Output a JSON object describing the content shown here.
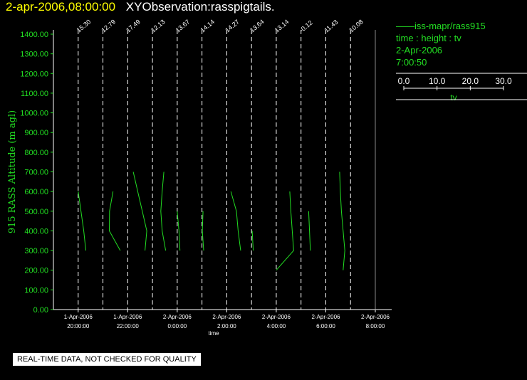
{
  "title": {
    "date": "2-apr-2006,08:00:00",
    "name": "XYObservation:rasspigtails."
  },
  "legend": {
    "series_line": "iss-mapr/rass915",
    "description": "time : height : tv",
    "date": "2-Apr-2006",
    "time": "7:00:50",
    "scale_ticks": [
      "0.0",
      "10.0",
      "20.0",
      "30.0"
    ],
    "scale_label": "tv"
  },
  "banner": "REAL-TIME DATA, NOT CHECKED FOR QUALITY",
  "colors": {
    "series": "#22dd22",
    "axis": "#ffffff",
    "title_date": "#ffff00",
    "grid": "#ffffff"
  },
  "chart_data": {
    "type": "line",
    "ylabel": "915 RASS Altitude (m agl)",
    "xlabel": "time",
    "ylim": [
      0,
      1400
    ],
    "y_ticks": [
      "0.00",
      "100.00",
      "200.00",
      "300.00",
      "400.00",
      "500.00",
      "600.00",
      "700.00",
      "800.00",
      "900.00",
      "1000.00",
      "1100.00",
      "1200.00",
      "1300.00",
      "1400.00"
    ],
    "x_range_hours": [
      19,
      8
    ],
    "x_ticks": [
      {
        "hour": 20,
        "date": "1-Apr-2006",
        "time": "20:00:00"
      },
      {
        "hour": 22,
        "date": "1-Apr-2006",
        "time": "22:00:00"
      },
      {
        "hour": 0,
        "date": "2-Apr-2006",
        "time": "0:00:00"
      },
      {
        "hour": 2,
        "date": "2-Apr-2006",
        "time": "2:00:00"
      },
      {
        "hour": 4,
        "date": "2-Apr-2006",
        "time": "4:00:00"
      },
      {
        "hour": 6,
        "date": "2-Apr-2006",
        "time": "6:00:00"
      },
      {
        "hour": 8,
        "date": "2-Apr-2006",
        "time": "8:00:00"
      }
    ],
    "profiles": [
      {
        "label": "15.30",
        "points": [
          [
            0.0,
            600
          ],
          [
            0.16,
            500
          ],
          [
            0.32,
            400
          ],
          [
            0.44,
            300
          ]
        ]
      },
      {
        "label": "12.79",
        "points": [
          [
            0.58,
            600
          ],
          [
            0.38,
            500
          ],
          [
            0.37,
            400
          ],
          [
            1.0,
            300
          ]
        ]
      },
      {
        "label": "17.49",
        "points": [
          [
            0.32,
            700
          ],
          [
            0.58,
            600
          ],
          [
            0.84,
            500
          ],
          [
            1.1,
            400
          ],
          [
            1.0,
            300
          ]
        ]
      },
      {
        "label": "12.13",
        "points": [
          [
            0.66,
            700
          ],
          [
            0.56,
            600
          ],
          [
            0.48,
            500
          ],
          [
            0.56,
            400
          ],
          [
            0.76,
            300
          ]
        ]
      },
      {
        "label": "13.67",
        "points": [
          [
            0.0,
            500
          ],
          [
            0.1,
            400
          ],
          [
            0.16,
            300
          ]
        ]
      },
      {
        "label": "14.14",
        "points": [
          [
            0.06,
            500
          ],
          [
            0.02,
            400
          ],
          [
            0.1,
            300
          ]
        ]
      },
      {
        "label": "14.27",
        "points": [
          [
            0.24,
            600
          ],
          [
            0.56,
            500
          ],
          [
            0.66,
            400
          ],
          [
            0.8,
            300
          ]
        ]
      },
      {
        "label": "13.64",
        "points": [
          [
            0.04,
            400
          ],
          [
            0.1,
            300
          ]
        ]
      },
      {
        "label": "13.14",
        "points": [
          [
            0.0,
            200
          ],
          [
            1.0,
            300
          ],
          [
            0.84,
            500
          ],
          [
            0.78,
            600
          ]
        ]
      },
      {
        "label": "-0.12",
        "points": [
          [
            0.44,
            500
          ],
          [
            0.54,
            300
          ]
        ]
      },
      {
        "label": "11.43",
        "points": [
          [
            0.8,
            700
          ],
          [
            0.84,
            600
          ],
          [
            0.9,
            500
          ],
          [
            1.0,
            400
          ],
          [
            1.1,
            300
          ],
          [
            1.0,
            200
          ]
        ]
      },
      {
        "label": "10.08",
        "points": []
      }
    ],
    "profile_start_hours": [
      20.0,
      21.0,
      22.0,
      23.0,
      0.0,
      1.0,
      2.0,
      3.0,
      4.0,
      5.0,
      6.0,
      7.0
    ]
  }
}
